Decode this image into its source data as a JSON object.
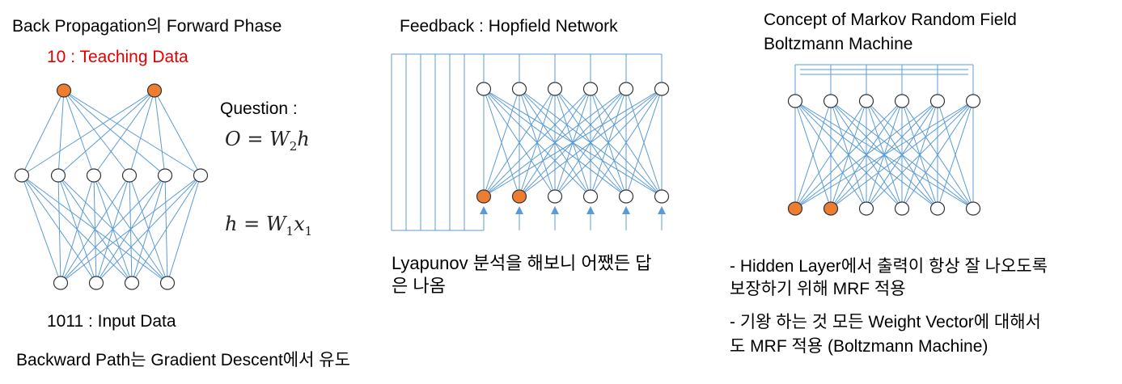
{
  "left": {
    "title": "Back Propagation의 Forward Phase",
    "teaching": "10 : Teaching Data",
    "question": "Question :",
    "eq1": {
      "lhs": "O",
      "w": "W",
      "wsub": "2",
      "rhs": "h"
    },
    "eq2": {
      "lhs": "h",
      "w": "W",
      "wsub": "1",
      "x": "x",
      "xsub": "1"
    },
    "input": "1011 : Input Data",
    "backward": "Backward Path는 Gradient Descent에서 유도"
  },
  "middle": {
    "title": "Feedback : Hopfield Network",
    "note_line1": "Lyapunov 분석을 해보니 어쨌든 답",
    "note_line2": "은 나옴"
  },
  "right": {
    "title_line1": "Concept of Markov Random Field",
    "title_line2": "Boltzmann Machine",
    "note1_line1": "- Hidden Layer에서 출력이 항상 잘 나오도록",
    "note1_line2": "보장하기 위해 MRF 적용",
    "note2_line1": "- 기왕 하는 것 모든 Weight Vector에 대해서",
    "note2_line2": "도 MRF 적용 (Boltzmann Machine)"
  },
  "colors": {
    "edge": "#5b9bd5",
    "active_node": "#ed7d31",
    "teaching_text": "#e00000"
  }
}
